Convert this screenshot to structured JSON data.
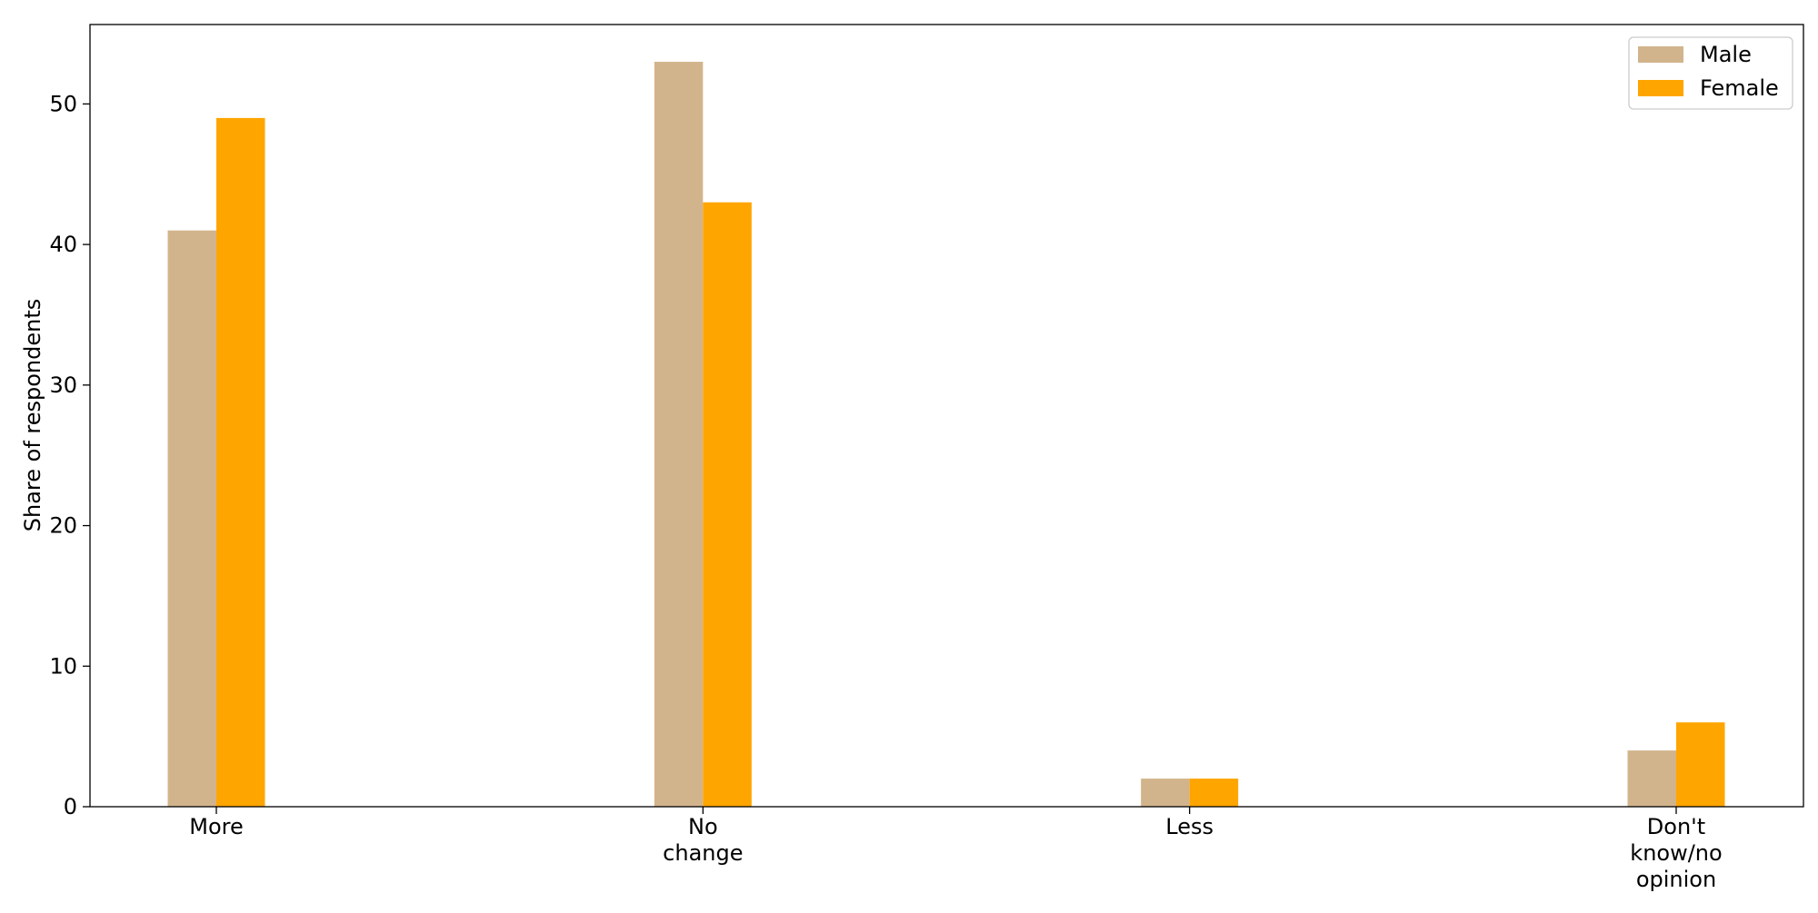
{
  "chart_data": {
    "type": "bar",
    "title": "",
    "xlabel": "",
    "ylabel": "Share of respondents",
    "categories": [
      [
        "More"
      ],
      [
        "No",
        "change"
      ],
      [
        "Less"
      ],
      [
        "Don't",
        "know/no",
        "opinion"
      ]
    ],
    "series": [
      {
        "name": "Male",
        "color": "#d2b48c",
        "values": [
          41,
          53,
          2,
          4
        ]
      },
      {
        "name": "Female",
        "color": "#ffa500",
        "values": [
          49,
          43,
          2,
          6
        ]
      }
    ],
    "ylim": [
      0,
      55.65
    ],
    "yticks": [
      0,
      10,
      20,
      30,
      40,
      50
    ],
    "grid": false,
    "legend_position": "top-right"
  }
}
